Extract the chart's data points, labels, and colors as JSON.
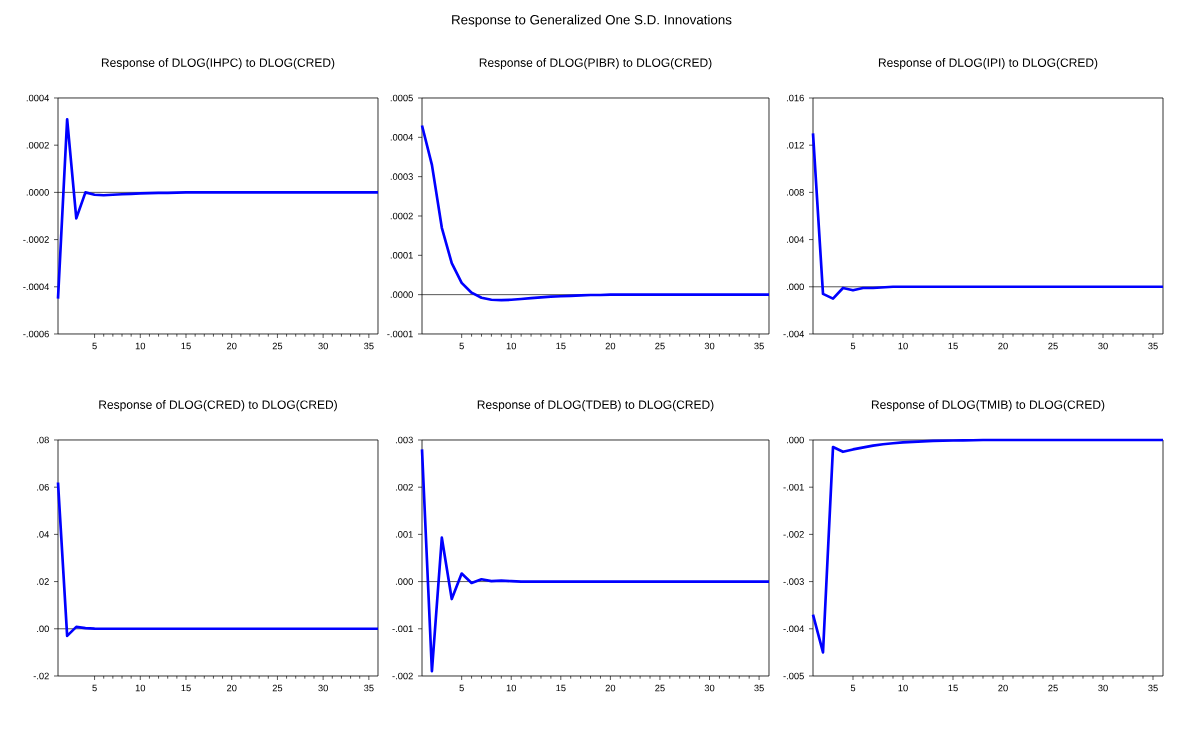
{
  "chart_data": [
    {
      "type": "line",
      "title": "Response of DLOG(IHPC) to DLOG(CRED)",
      "annotations": [
        "Response to Generalized One S.D. Innovations"
      ],
      "x": [
        1,
        2,
        3,
        4,
        5,
        6,
        7,
        8,
        9,
        10,
        11,
        12,
        13,
        14,
        15,
        16,
        17,
        18,
        19,
        20,
        21,
        22,
        23,
        24,
        25,
        26,
        27,
        28,
        29,
        30,
        31,
        32,
        33,
        34,
        35,
        36
      ],
      "series": [
        {
          "color": "#0000ff",
          "values": [
            -0.00045,
            0.00031,
            -0.00011,
            0.0,
            -1e-05,
            -1.2e-05,
            -1e-05,
            -8e-06,
            -6e-06,
            -4e-06,
            -3e-06,
            -2e-06,
            -2e-06,
            -1e-06,
            0,
            0,
            0,
            0,
            0,
            0,
            0,
            0,
            0,
            0,
            0,
            0,
            0,
            0,
            0,
            0,
            0,
            0,
            0,
            0,
            0,
            0
          ]
        }
      ],
      "xlim": [
        1,
        36
      ],
      "xticks": [
        5,
        10,
        15,
        20,
        25,
        30,
        35
      ],
      "ylim": [
        -0.0006,
        0.0004
      ],
      "yticks": [
        {
          "value": -0.0006,
          "label": "-.0006"
        },
        {
          "value": -0.0004,
          "label": "-.0004"
        },
        {
          "value": -0.0002,
          "label": "-.0002"
        },
        {
          "value": 0,
          "label": ".0000"
        },
        {
          "value": 0.0002,
          "label": ".0002"
        },
        {
          "value": 0.0004,
          "label": ".0004"
        }
      ],
      "ref_lines": [
        {
          "axis": "y",
          "value": 0,
          "color": "#000000"
        }
      ]
    },
    {
      "type": "line",
      "title": "Response of DLOG(PIBR) to DLOG(CRED)",
      "x": [
        1,
        2,
        3,
        4,
        5,
        6,
        7,
        8,
        9,
        10,
        11,
        12,
        13,
        14,
        15,
        16,
        17,
        18,
        19,
        20,
        21,
        22,
        23,
        24,
        25,
        26,
        27,
        28,
        29,
        30,
        31,
        32,
        33,
        34,
        35,
        36
      ],
      "series": [
        {
          "color": "#0000ff",
          "values": [
            0.00043,
            0.00033,
            0.00017,
            8e-05,
            3e-05,
            5e-06,
            -8e-06,
            -1.3e-05,
            -1.4e-05,
            -1.3e-05,
            -1.1e-05,
            -9e-06,
            -7e-06,
            -5e-06,
            -4e-06,
            -3e-06,
            -2e-06,
            -1e-06,
            -1e-06,
            0,
            0,
            0,
            0,
            0,
            0,
            0,
            0,
            0,
            0,
            0,
            0,
            0,
            0,
            0,
            0,
            0
          ]
        }
      ],
      "xlim": [
        1,
        36
      ],
      "xticks": [
        5,
        10,
        15,
        20,
        25,
        30,
        35
      ],
      "ylim": [
        -0.0001,
        0.0005
      ],
      "yticks": [
        {
          "value": -0.0001,
          "label": "-.0001"
        },
        {
          "value": 0,
          "label": ".0000"
        },
        {
          "value": 0.0001,
          "label": ".0001"
        },
        {
          "value": 0.0002,
          "label": ".0002"
        },
        {
          "value": 0.0003,
          "label": ".0003"
        },
        {
          "value": 0.0004,
          "label": ".0004"
        },
        {
          "value": 0.0005,
          "label": ".0005"
        }
      ],
      "ref_lines": [
        {
          "axis": "y",
          "value": 0,
          "color": "#000000"
        }
      ]
    },
    {
      "type": "line",
      "title": "Response of DLOG(IPI) to DLOG(CRED)",
      "x": [
        1,
        2,
        3,
        4,
        5,
        6,
        7,
        8,
        9,
        10,
        11,
        12,
        13,
        14,
        15,
        16,
        17,
        18,
        19,
        20,
        21,
        22,
        23,
        24,
        25,
        26,
        27,
        28,
        29,
        30,
        31,
        32,
        33,
        34,
        35,
        36
      ],
      "series": [
        {
          "color": "#0000ff",
          "values": [
            0.013,
            -0.0006,
            -0.001,
            -0.0001,
            -0.0003,
            -0.0001,
            -0.0001,
            -5e-05,
            0,
            0,
            0,
            0,
            0,
            0,
            0,
            0,
            0,
            0,
            0,
            0,
            0,
            0,
            0,
            0,
            0,
            0,
            0,
            0,
            0,
            0,
            0,
            0,
            0,
            0,
            0,
            0
          ]
        }
      ],
      "xlim": [
        1,
        36
      ],
      "xticks": [
        5,
        10,
        15,
        20,
        25,
        30,
        35
      ],
      "ylim": [
        -0.004,
        0.016
      ],
      "yticks": [
        {
          "value": -0.004,
          "label": "-.004"
        },
        {
          "value": 0,
          "label": ".000"
        },
        {
          "value": 0.004,
          "label": ".004"
        },
        {
          "value": 0.008,
          "label": ".008"
        },
        {
          "value": 0.012,
          "label": ".012"
        },
        {
          "value": 0.016,
          "label": ".016"
        }
      ],
      "ref_lines": [
        {
          "axis": "y",
          "value": 0,
          "color": "#000000"
        }
      ]
    },
    {
      "type": "line",
      "title": "Response of DLOG(CRED) to DLOG(CRED)",
      "x": [
        1,
        2,
        3,
        4,
        5,
        6,
        7,
        8,
        9,
        10,
        11,
        12,
        13,
        14,
        15,
        16,
        17,
        18,
        19,
        20,
        21,
        22,
        23,
        24,
        25,
        26,
        27,
        28,
        29,
        30,
        31,
        32,
        33,
        34,
        35,
        36
      ],
      "series": [
        {
          "color": "#0000ff",
          "values": [
            0.062,
            -0.003,
            0.0008,
            0.0003,
            0.0001,
            0,
            0,
            0,
            0,
            0,
            0,
            0,
            0,
            0,
            0,
            0,
            0,
            0,
            0,
            0,
            0,
            0,
            0,
            0,
            0,
            0,
            0,
            0,
            0,
            0,
            0,
            0,
            0,
            0,
            0,
            0
          ]
        }
      ],
      "xlim": [
        1,
        36
      ],
      "xticks": [
        5,
        10,
        15,
        20,
        25,
        30,
        35
      ],
      "ylim": [
        -0.02,
        0.08
      ],
      "yticks": [
        {
          "value": -0.02,
          "label": "-.02"
        },
        {
          "value": 0,
          "label": ".00"
        },
        {
          "value": 0.02,
          "label": ".02"
        },
        {
          "value": 0.04,
          "label": ".04"
        },
        {
          "value": 0.06,
          "label": ".06"
        },
        {
          "value": 0.08,
          "label": ".08"
        }
      ],
      "ref_lines": [
        {
          "axis": "y",
          "value": 0,
          "color": "#000000"
        }
      ]
    },
    {
      "type": "line",
      "title": "Response of DLOG(TDEB) to DLOG(CRED)",
      "x": [
        1,
        2,
        3,
        4,
        5,
        6,
        7,
        8,
        9,
        10,
        11,
        12,
        13,
        14,
        15,
        16,
        17,
        18,
        19,
        20,
        21,
        22,
        23,
        24,
        25,
        26,
        27,
        28,
        29,
        30,
        31,
        32,
        33,
        34,
        35,
        36
      ],
      "series": [
        {
          "color": "#0000ff",
          "values": [
            0.0028,
            -0.0019,
            0.00093,
            -0.00037,
            0.00017,
            -3e-05,
            5e-05,
            1e-05,
            2e-05,
            1e-05,
            0,
            0,
            0,
            0,
            0,
            0,
            0,
            0,
            0,
            0,
            0,
            0,
            0,
            0,
            0,
            0,
            0,
            0,
            0,
            0,
            0,
            0,
            0,
            0,
            0,
            0
          ]
        }
      ],
      "xlim": [
        1,
        36
      ],
      "xticks": [
        5,
        10,
        15,
        20,
        25,
        30,
        35
      ],
      "ylim": [
        -0.002,
        0.003
      ],
      "yticks": [
        {
          "value": -0.002,
          "label": "-.002"
        },
        {
          "value": -0.001,
          "label": "-.001"
        },
        {
          "value": 0,
          "label": ".000"
        },
        {
          "value": 0.001,
          "label": ".001"
        },
        {
          "value": 0.002,
          "label": ".002"
        },
        {
          "value": 0.003,
          "label": ".003"
        }
      ],
      "ref_lines": [
        {
          "axis": "y",
          "value": 0,
          "color": "#000000"
        }
      ]
    },
    {
      "type": "line",
      "title": "Response of DLOG(TMIB) to DLOG(CRED)",
      "x": [
        1,
        2,
        3,
        4,
        5,
        6,
        7,
        8,
        9,
        10,
        11,
        12,
        13,
        14,
        15,
        16,
        17,
        18,
        19,
        20,
        21,
        22,
        23,
        24,
        25,
        26,
        27,
        28,
        29,
        30,
        31,
        32,
        33,
        34,
        35,
        36
      ],
      "series": [
        {
          "color": "#0000ff",
          "values": [
            -0.0037,
            -0.0045,
            -0.00015,
            -0.00025,
            -0.0002,
            -0.00016,
            -0.00012,
            -9e-05,
            -7e-05,
            -5e-05,
            -4e-05,
            -3e-05,
            -2e-05,
            -1.5e-05,
            -1e-05,
            -8e-06,
            -5e-06,
            0,
            0,
            0,
            0,
            0,
            0,
            0,
            0,
            0,
            0,
            0,
            0,
            0,
            0,
            0,
            0,
            0,
            0,
            0
          ]
        }
      ],
      "xlim": [
        1,
        36
      ],
      "xticks": [
        5,
        10,
        15,
        20,
        25,
        30,
        35
      ],
      "ylim": [
        -0.005,
        0.0
      ],
      "yticks": [
        {
          "value": -0.005,
          "label": "-.005"
        },
        {
          "value": -0.004,
          "label": "-.004"
        },
        {
          "value": -0.003,
          "label": "-.003"
        },
        {
          "value": -0.002,
          "label": "-.002"
        },
        {
          "value": -0.001,
          "label": "-.001"
        },
        {
          "value": 0,
          "label": ".000"
        }
      ]
    }
  ]
}
